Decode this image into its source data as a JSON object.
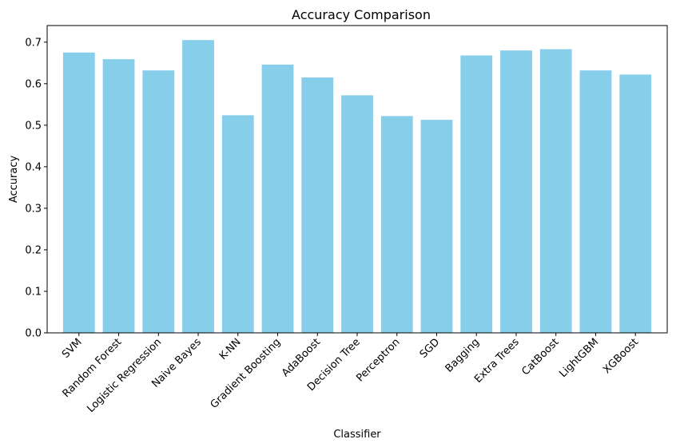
{
  "chart_data": {
    "type": "bar",
    "title": "Accuracy Comparison",
    "xlabel": "Classifier",
    "ylabel": "Accuracy",
    "ylim": [
      0,
      0.74
    ],
    "yticks": [
      0.0,
      0.1,
      0.2,
      0.3,
      0.4,
      0.5,
      0.6,
      0.7
    ],
    "ytick_labels": [
      "0.0",
      "0.1",
      "0.2",
      "0.3",
      "0.4",
      "0.5",
      "0.6",
      "0.7"
    ],
    "categories": [
      "SVM",
      "Random Forest",
      "Logistic Regression",
      "Naive Bayes",
      "K-NN",
      "Gradient Boosting",
      "AdaBoost",
      "Decision Tree",
      "Perceptron",
      "SGD",
      "Bagging",
      "Extra Trees",
      "CatBoost",
      "LightGBM",
      "XGBoost"
    ],
    "values": [
      0.675,
      0.659,
      0.632,
      0.705,
      0.524,
      0.646,
      0.615,
      0.572,
      0.522,
      0.513,
      0.668,
      0.68,
      0.683,
      0.632,
      0.622
    ],
    "bar_color": "#87ceeb",
    "grid": false,
    "legend": "none"
  }
}
